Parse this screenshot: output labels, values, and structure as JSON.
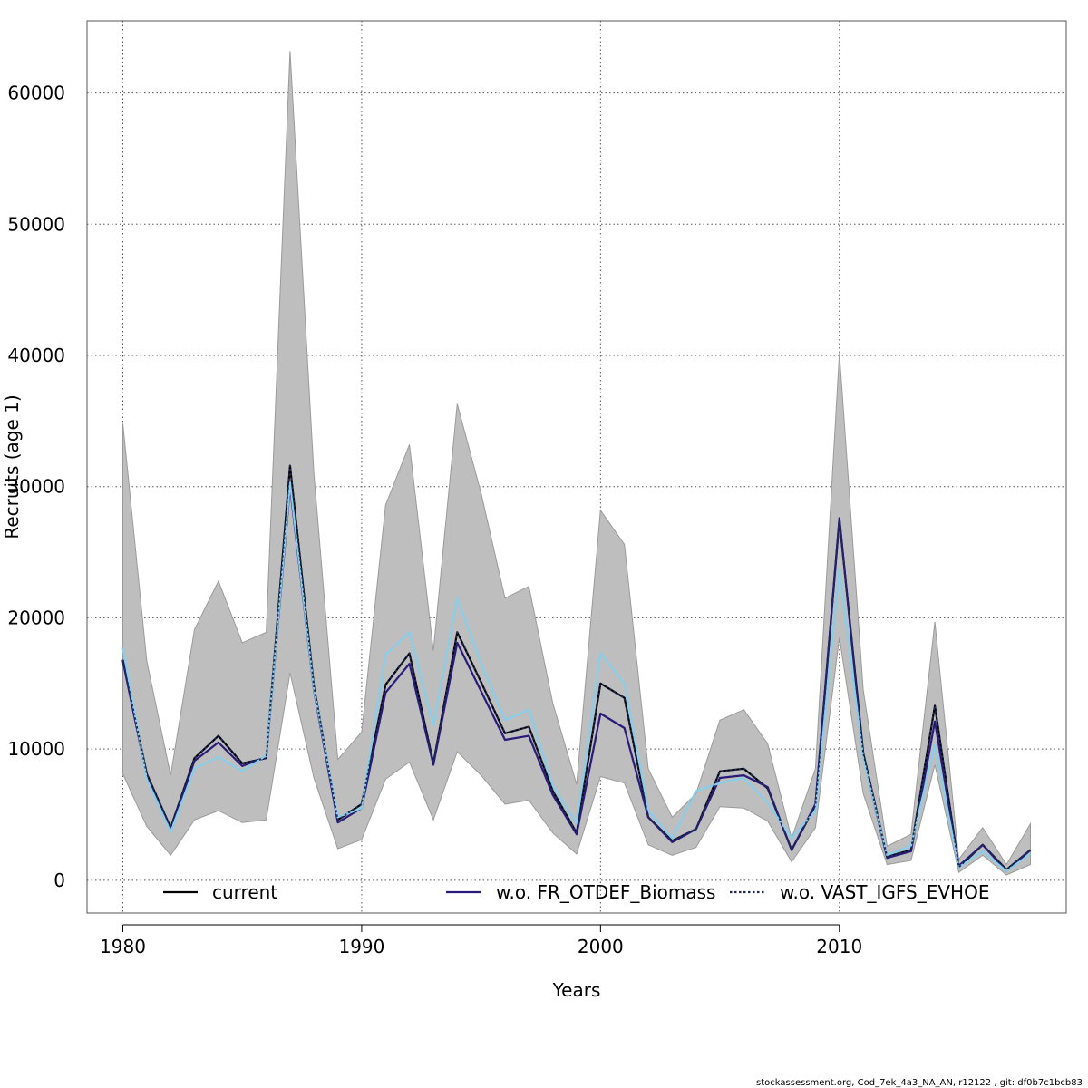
{
  "chart_data": {
    "type": "line",
    "title": "",
    "xlabel": "Years",
    "ylabel": "Recruits (age 1)",
    "xlim": [
      1978.5,
      2019.5
    ],
    "ylim": [
      -2500,
      65500
    ],
    "x_ticks": [
      1980,
      1990,
      2000,
      2010
    ],
    "x_tick_labels": [
      "1980",
      "1990",
      "2000",
      "2010"
    ],
    "y_ticks": [
      0,
      10000,
      20000,
      30000,
      40000,
      50000,
      60000
    ],
    "y_tick_labels": [
      "0",
      "10000",
      "20000",
      "30000",
      "40000",
      "50000",
      "60000"
    ],
    "grid": true,
    "legend_placement": "bottom",
    "x": [
      1980,
      1981,
      1982,
      1983,
      1984,
      1985,
      1986,
      1987,
      1988,
      1989,
      1990,
      1991,
      1992,
      1993,
      1994,
      1995,
      1996,
      1997,
      1998,
      1999,
      2000,
      2001,
      2002,
      2003,
      2004,
      2005,
      2006,
      2007,
      2008,
      2009,
      2010,
      2011,
      2012,
      2013,
      2014,
      2015,
      2016,
      2017,
      2018
    ],
    "confidence_band": {
      "color": "#bebebe",
      "upper": [
        34800,
        16700,
        8000,
        19100,
        22800,
        18100,
        18900,
        63200,
        31000,
        9200,
        11300,
        28600,
        33200,
        17500,
        36300,
        29500,
        21500,
        22400,
        13500,
        7300,
        28200,
        25600,
        8500,
        4800,
        6600,
        12200,
        13000,
        10400,
        3200,
        8500,
        40200,
        14500,
        2600,
        3500,
        19700,
        1600,
        4000,
        1200,
        4300
      ],
      "lower": [
        8100,
        4100,
        1900,
        4600,
        5300,
        4400,
        4600,
        15800,
        7800,
        2400,
        3100,
        7700,
        9000,
        4600,
        9800,
        8000,
        5800,
        6100,
        3600,
        2000,
        7900,
        7400,
        2700,
        1900,
        2500,
        5600,
        5500,
        4500,
        1400,
        4000,
        18500,
        6600,
        1200,
        1500,
        8800,
        600,
        1900,
        400,
        1200
      ]
    },
    "series": [
      {
        "name": "current",
        "color": "#000000",
        "dashed": false,
        "values": [
          16800,
          8100,
          4000,
          9300,
          11000,
          8900,
          9300,
          31600,
          14800,
          4600,
          5800,
          14900,
          17300,
          8900,
          18900,
          15100,
          11200,
          11700,
          6800,
          3600,
          15000,
          13900,
          4800,
          3000,
          3900,
          8300,
          8500,
          7000,
          2300,
          5700,
          27500,
          9700,
          1800,
          2300,
          13300,
          1000,
          2700,
          800,
          2300
        ]
      },
      {
        "name": "w.o. FR_OTDEF_Biomass",
        "color": "#2a1a7a",
        "dashed": false,
        "values": [
          16700,
          7900,
          3900,
          9100,
          10500,
          8700,
          9400,
          30000,
          14500,
          4400,
          5500,
          14300,
          16500,
          8800,
          18100,
          14400,
          10700,
          11000,
          6500,
          3500,
          12700,
          11600,
          4800,
          2900,
          3900,
          7800,
          8000,
          7100,
          2300,
          5800,
          27600,
          9400,
          1700,
          2200,
          12100,
          1100,
          2700,
          700,
          2300
        ]
      },
      {
        "name": "w.o. VAST_IGFS_EVHOE",
        "color": "#87ceeb",
        "dashed": false,
        "values": [
          17700,
          7700,
          3700,
          8500,
          9400,
          8300,
          9500,
          30300,
          14600,
          4800,
          5500,
          17200,
          18900,
          11800,
          21500,
          16500,
          12200,
          13000,
          7200,
          4300,
          17300,
          15000,
          5300,
          3200,
          6800,
          7400,
          7800,
          5900,
          3200,
          5300,
          23700,
          9300,
          1900,
          2600,
          10300,
          1000,
          2200,
          700,
          2000
        ]
      },
      {
        "name": "w.o. VAST_IGFS_EVHOE",
        "color": "#1a2a5a",
        "dashed": true,
        "values": [
          16800,
          8100,
          4000,
          9300,
          11000,
          8900,
          9300,
          31600,
          14800,
          4600,
          5800,
          14900,
          17300,
          8900,
          18900,
          15100,
          11200,
          11700,
          6800,
          3600,
          15000,
          13900,
          4800,
          3000,
          3900,
          8300,
          8500,
          7000,
          2300,
          5700,
          27500,
          9700,
          1800,
          2300,
          13300,
          1000,
          2700,
          800,
          2300
        ]
      }
    ],
    "legend": [
      {
        "label": "current",
        "color": "#000000",
        "dashed": false
      },
      {
        "label": "w.o. FR_OTDEF_Biomass",
        "color": "#2a1a7a",
        "dashed": false
      },
      {
        "label": "w.o. VAST_IGFS_EVHOE",
        "color": "#1a2a5a",
        "dashed": true
      }
    ],
    "footer": "stockassessment.org, Cod_7ek_4a3_NA_AN, r12122 , git: df0b7c1bcb83"
  }
}
